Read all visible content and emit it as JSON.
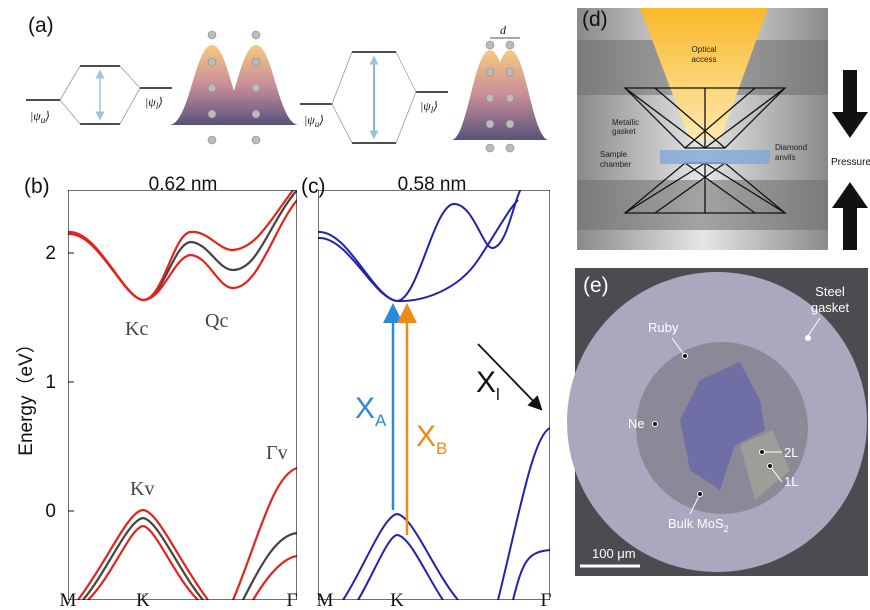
{
  "panels": {
    "a": {
      "label": "(a)",
      "states": [
        {
          "text": "|ψ",
          "sub": "u",
          "close": "⟩"
        },
        {
          "text": "|ψ",
          "sub": "l",
          "close": "⟩"
        },
        {
          "text": "|ψ",
          "sub": "u",
          "close": "⟩"
        },
        {
          "text": "|ψ",
          "sub": "l",
          "close": "⟩"
        }
      ],
      "spacing": "d"
    },
    "b": {
      "label": "(b)",
      "title": "0.62 nm",
      "y_axis_label": "Energy（eV）",
      "yticks": [
        0,
        1,
        2
      ],
      "xticks": [
        "M",
        "K",
        "Γ"
      ],
      "annotations": [
        "Kc",
        "Qc",
        "Kv",
        "Γv"
      ]
    },
    "c": {
      "label": "(c)",
      "title": "0.58 nm",
      "xticks": [
        "M",
        "K",
        "Γ"
      ],
      "annotations": [
        {
          "text": "X",
          "sub": "A"
        },
        {
          "text": "X",
          "sub": "B"
        },
        {
          "text": "X",
          "sub": "l"
        }
      ]
    },
    "d": {
      "label": "(d)",
      "labels": [
        "Optical",
        "access",
        "Metallic",
        "gasket",
        "Sample",
        "chamber",
        "Diamond",
        "anvils",
        "Pressure"
      ]
    },
    "e": {
      "label": "(e)",
      "labels": [
        "Steel",
        "gasket",
        "Ruby",
        "Ne",
        "2L",
        "1L"
      ],
      "bulk": {
        "text": "Bulk MoS",
        "sub": "2"
      },
      "scale": "100 μm"
    }
  }
}
